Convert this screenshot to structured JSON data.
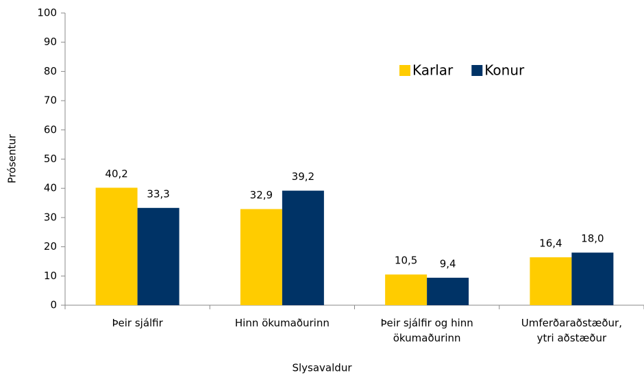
{
  "chart_data": {
    "type": "bar",
    "x_label": "Slysavaldur",
    "y_label": "Prósentur",
    "categories": [
      "Þeir sjálfir",
      "Hinn ökumaðurinn",
      "Þeir sjálfir og hinn\nökumaðurinn",
      "Umferðaraðstæður,\nytri aðstæður"
    ],
    "series": [
      {
        "name": "Karlar",
        "color": "#ffcc00",
        "values": [
          40.2,
          32.9,
          10.5,
          16.4
        ],
        "value_labels": [
          "40,2",
          "32,9",
          "10,5",
          "16,4"
        ]
      },
      {
        "name": "Konur",
        "color": "#003366",
        "values": [
          33.3,
          39.2,
          9.4,
          18.0
        ],
        "value_labels": [
          "33,3",
          "39,2",
          "9,4",
          "18,0"
        ]
      }
    ],
    "ylim": [
      0,
      100
    ],
    "yticks": [
      0,
      10,
      20,
      30,
      40,
      50,
      60,
      70,
      80,
      90,
      100
    ],
    "grid": false,
    "legend": "upper right"
  }
}
